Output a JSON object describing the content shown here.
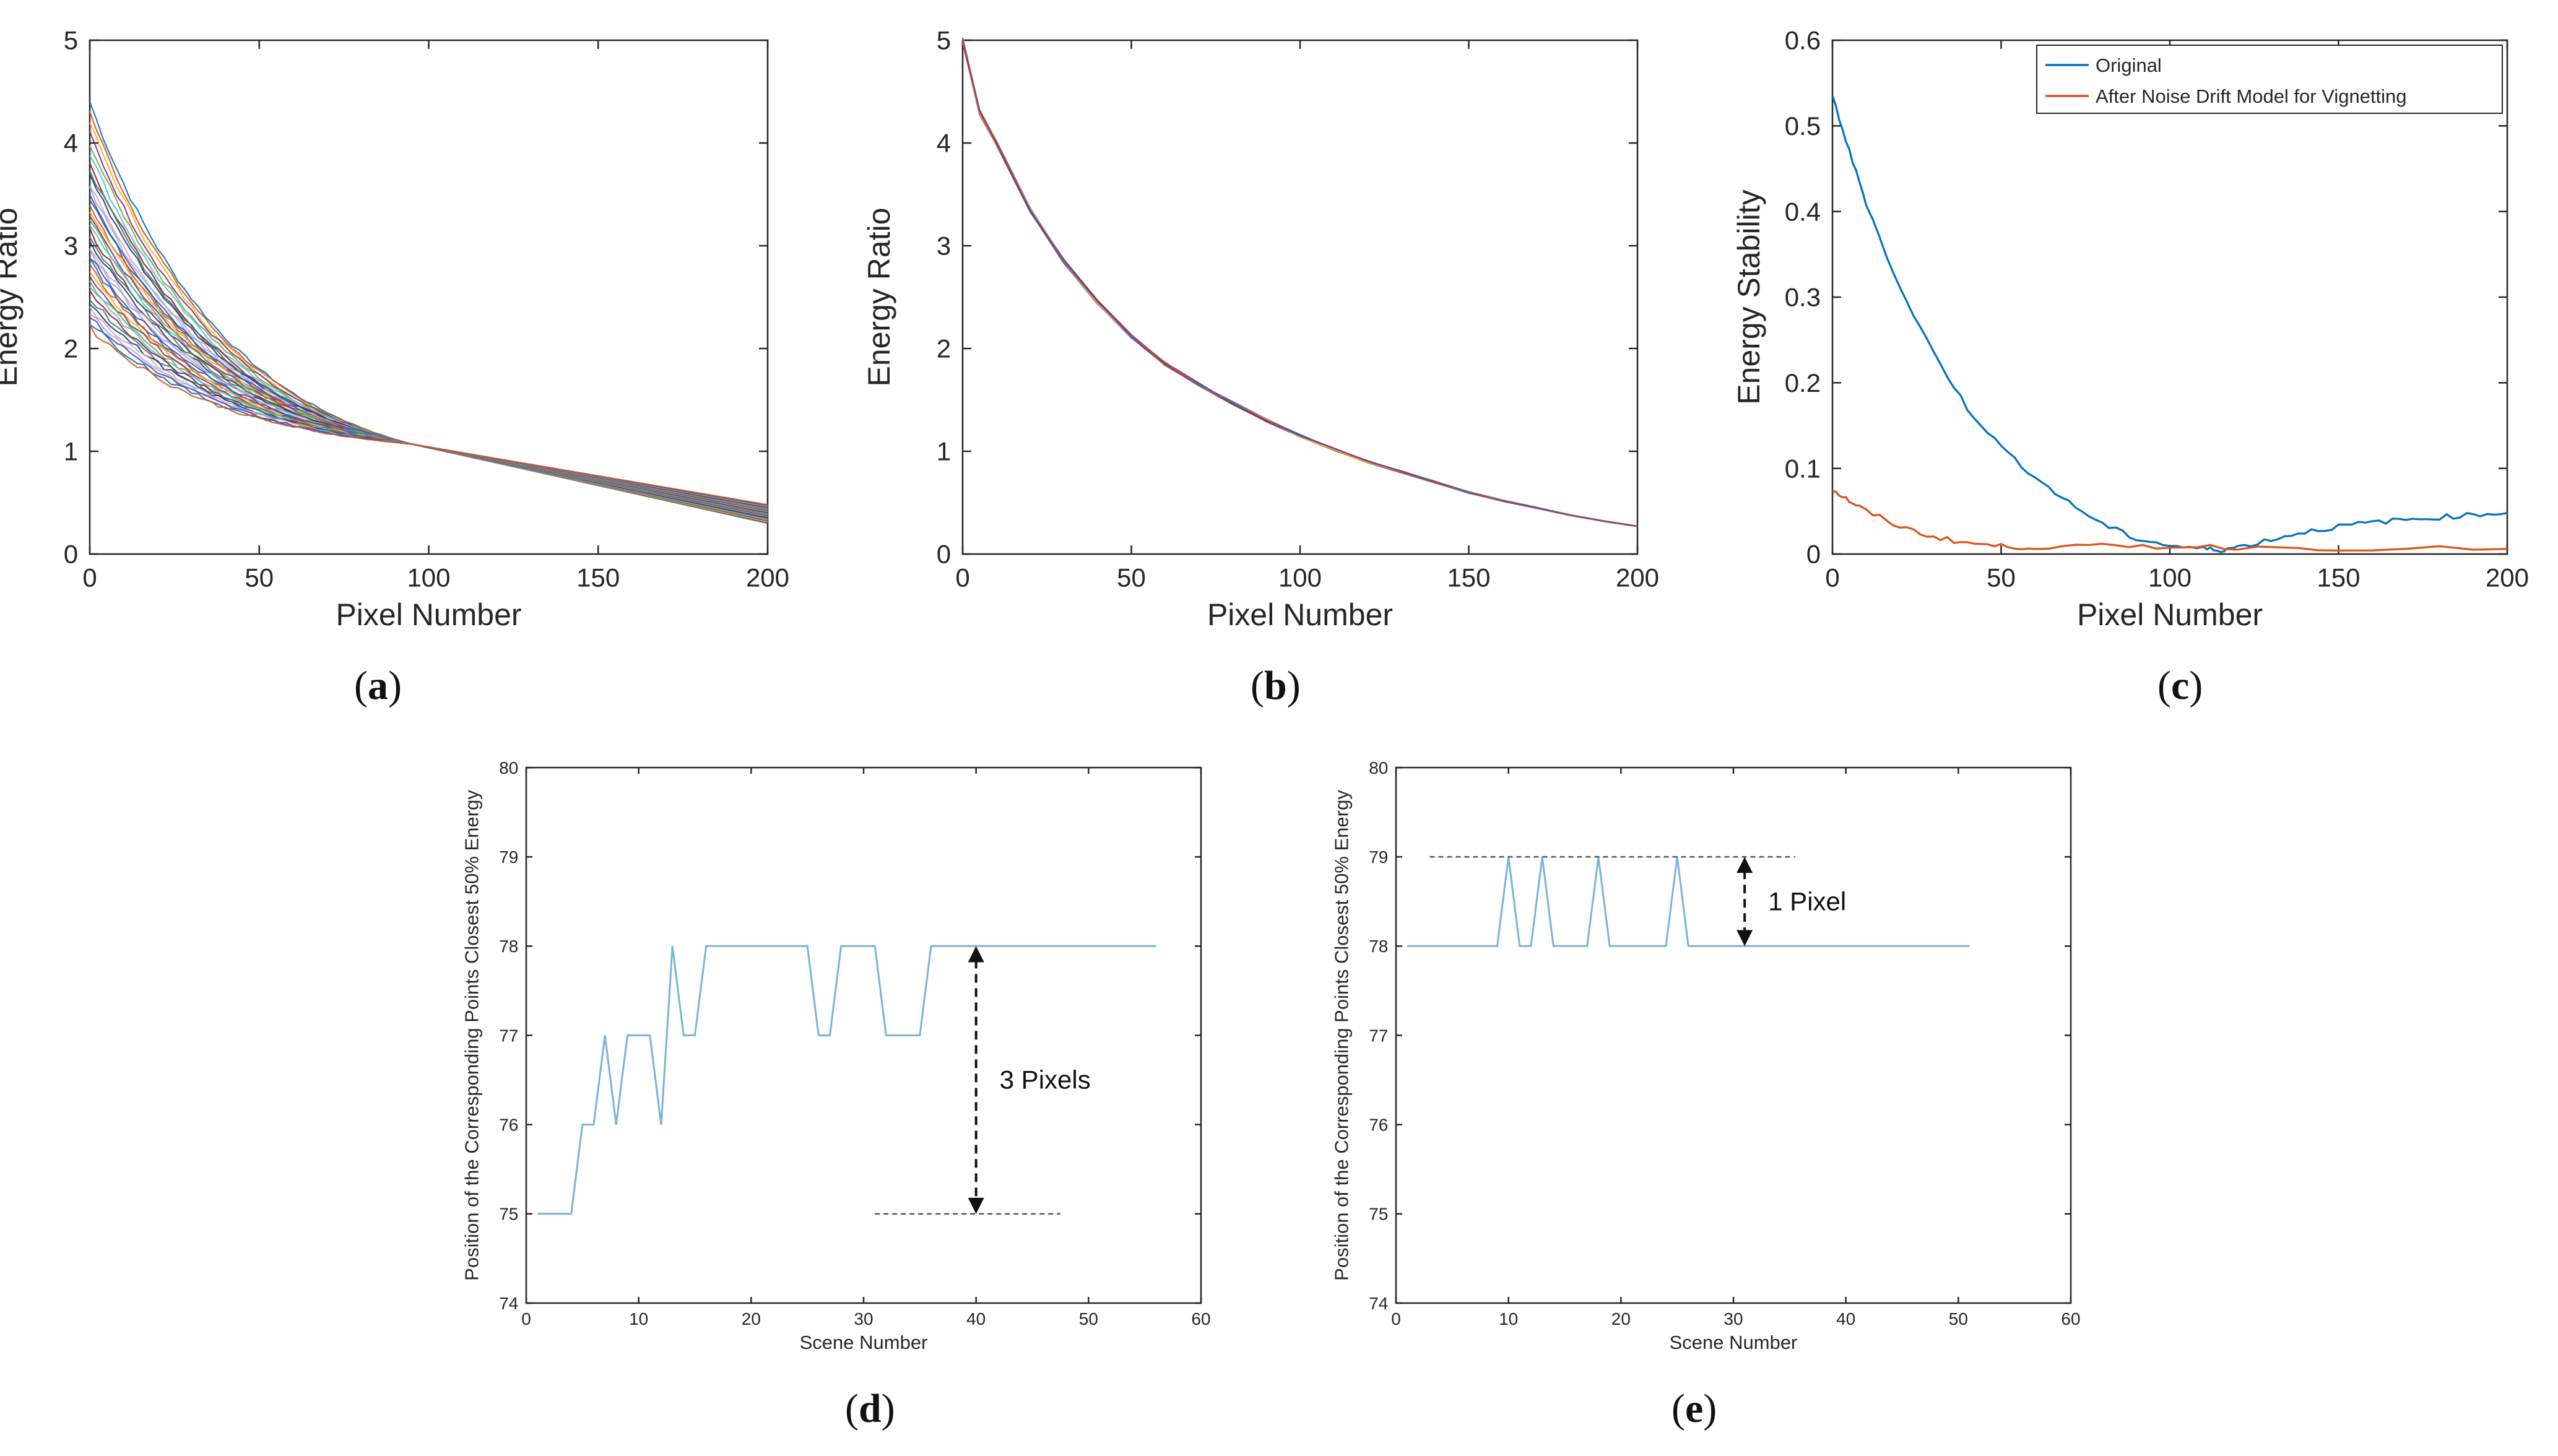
{
  "figure": {
    "panel_labels": [
      "a",
      "b",
      "c",
      "d",
      "e"
    ]
  },
  "colors": {
    "axis": "#262626",
    "series_a_palette": [
      "#0072BD",
      "#D95319",
      "#EDB120",
      "#7E2F8E",
      "#77AC30",
      "#4DBEEE",
      "#A2142F",
      "#2E8B57",
      "#1F3A93",
      "#E5A0A0",
      "#8DB3E2",
      "#6B3FA0"
    ],
    "original": "#0072BD",
    "after_model": "#D95319",
    "lower_line": "#79B3D9",
    "dashed": "#555555",
    "arrow": "#111111"
  },
  "chart_data": [
    {
      "id": "a",
      "type": "line",
      "description_series": "about 40 scene curves, each decays from a start value between 2.2 and 4.4 toward 1.07 at pixel 95, then to 0.30-0.48 at pixel 200",
      "xlabel": "Pixel Number",
      "ylabel": "Energy Ratio",
      "xlim": [
        0,
        200
      ],
      "ylim": [
        0,
        5
      ],
      "xticks": [
        0,
        50,
        100,
        150,
        200
      ],
      "yticks": [
        0,
        1,
        2,
        3,
        4,
        5
      ],
      "series_start_values": [
        4.4,
        4.3,
        4.2,
        4.1,
        4.0,
        3.9,
        3.8,
        3.75,
        3.7,
        3.6,
        3.55,
        3.5,
        3.45,
        3.4,
        3.35,
        3.3,
        3.25,
        3.2,
        3.15,
        3.1,
        3.05,
        3.0,
        2.95,
        2.9,
        2.85,
        2.8,
        2.75,
        2.7,
        2.65,
        2.6,
        2.55,
        2.5,
        2.45,
        2.4,
        2.35,
        2.3,
        2.25,
        2.2
      ],
      "converge_x": 95,
      "converge_y": 1.07,
      "end_y_range": [
        0.3,
        0.48
      ]
    },
    {
      "id": "b",
      "type": "line",
      "xlabel": "Pixel Number",
      "ylabel": "Energy Ratio",
      "xlim": [
        0,
        200
      ],
      "ylim": [
        0,
        5
      ],
      "xticks": [
        0,
        50,
        100,
        150,
        200
      ],
      "yticks": [
        0,
        1,
        2,
        3,
        4,
        5
      ],
      "x": [
        0,
        5,
        10,
        20,
        30,
        40,
        50,
        60,
        70,
        80,
        90,
        100,
        110,
        120,
        130,
        140,
        150,
        160,
        170,
        180,
        190,
        200
      ],
      "y": [
        5.0,
        4.3,
        4.0,
        3.35,
        2.85,
        2.45,
        2.12,
        1.85,
        1.65,
        1.47,
        1.3,
        1.15,
        1.02,
        0.9,
        0.8,
        0.7,
        0.6,
        0.52,
        0.45,
        0.38,
        0.32,
        0.27
      ],
      "series_count": 40
    },
    {
      "id": "c",
      "type": "line",
      "xlabel": "Pixel Number",
      "ylabel": "Energy Stability",
      "xlim": [
        0,
        200
      ],
      "ylim": [
        0,
        0.6
      ],
      "xticks": [
        0,
        50,
        100,
        150,
        200
      ],
      "yticks": [
        0,
        0.1,
        0.2,
        0.3,
        0.4,
        0.5,
        0.6
      ],
      "ytick_labels": [
        "0",
        "0.1",
        "0.2",
        "0.3",
        "0.4",
        "0.5",
        "0.6"
      ],
      "legend_position": "top-right",
      "series": [
        {
          "name": "Original",
          "x": [
            0,
            5,
            10,
            20,
            30,
            40,
            50,
            60,
            70,
            80,
            90,
            100,
            110,
            115,
            120,
            130,
            140,
            150,
            160,
            170,
            180,
            190,
            200
          ],
          "y": [
            0.535,
            0.47,
            0.41,
            0.31,
            0.235,
            0.17,
            0.125,
            0.09,
            0.06,
            0.035,
            0.018,
            0.01,
            0.006,
            0.005,
            0.008,
            0.017,
            0.026,
            0.032,
            0.037,
            0.04,
            0.043,
            0.046,
            0.048
          ]
        },
        {
          "name": "After Noise Drift Model for Vignetting",
          "x": [
            0,
            5,
            10,
            20,
            30,
            40,
            50,
            60,
            80,
            100,
            120,
            150,
            200
          ],
          "y": [
            0.075,
            0.062,
            0.05,
            0.032,
            0.02,
            0.013,
            0.009,
            0.008,
            0.009,
            0.009,
            0.008,
            0.007,
            0.006
          ]
        }
      ]
    },
    {
      "id": "d",
      "type": "line",
      "xlabel": "Scene Number",
      "ylabel": "Position of the Corresponding Points Closest 50% Energy",
      "xlim": [
        0,
        60
      ],
      "ylim": [
        74,
        80
      ],
      "xticks": [
        0,
        10,
        20,
        30,
        40,
        50,
        60
      ],
      "yticks": [
        74,
        75,
        76,
        77,
        78,
        79,
        80
      ],
      "x": [
        1,
        2,
        3,
        4,
        5,
        6,
        7,
        8,
        9,
        10,
        11,
        12,
        13,
        14,
        15,
        16,
        17,
        18,
        19,
        20,
        21,
        22,
        23,
        24,
        25,
        26,
        27,
        28,
        29,
        30,
        31,
        32,
        33,
        34,
        35,
        36,
        37,
        38,
        39,
        40,
        41,
        42,
        43,
        44,
        45,
        46,
        47,
        48,
        49,
        50,
        51,
        52,
        53,
        54,
        55,
        56
      ],
      "y": [
        75,
        75,
        75,
        75,
        76,
        76,
        77,
        76,
        77,
        77,
        77,
        76,
        78,
        77,
        77,
        78,
        78,
        78,
        78,
        78,
        78,
        78,
        78,
        78,
        78,
        77,
        77,
        78,
        78,
        78,
        78,
        77,
        77,
        77,
        77,
        78,
        78,
        78,
        78,
        78,
        78,
        78,
        78,
        78,
        78,
        78,
        78,
        78,
        78,
        78,
        78,
        78,
        78,
        78,
        78,
        78
      ],
      "annotation": {
        "text": "3 Pixels",
        "arrow_x": 40,
        "arrow_from": 78,
        "arrow_to": 75,
        "dashed_y": 75,
        "dashed_x_range": [
          31,
          47.5
        ]
      }
    },
    {
      "id": "e",
      "type": "line",
      "xlabel": "Scene Number",
      "ylabel": "Position of the Corresponding Points Closest 50% Energy",
      "xlim": [
        0,
        60
      ],
      "ylim": [
        74,
        80
      ],
      "xticks": [
        0,
        10,
        20,
        30,
        40,
        50,
        60
      ],
      "yticks": [
        74,
        75,
        76,
        77,
        78,
        79,
        80
      ],
      "x": [
        1,
        2,
        3,
        4,
        5,
        6,
        7,
        8,
        9,
        10,
        11,
        12,
        13,
        14,
        15,
        16,
        17,
        18,
        19,
        20,
        21,
        22,
        23,
        24,
        25,
        26,
        27,
        28,
        29,
        30,
        31,
        32,
        33,
        34,
        35,
        36,
        37,
        38,
        39,
        40,
        41,
        42,
        43,
        44,
        45,
        46,
        47,
        48,
        49,
        50,
        51
      ],
      "y": [
        78,
        78,
        78,
        78,
        78,
        78,
        78,
        78,
        78,
        79,
        78,
        78,
        79,
        78,
        78,
        78,
        78,
        79,
        78,
        78,
        78,
        78,
        78,
        78,
        79,
        78,
        78,
        78,
        78,
        78,
        78,
        78,
        78,
        78,
        78,
        78,
        78,
        78,
        78,
        78,
        78,
        78,
        78,
        78,
        78,
        78,
        78,
        78,
        78,
        78,
        78
      ],
      "annotation": {
        "text": "1 Pixel",
        "arrow_x": 31,
        "arrow_from": 79,
        "arrow_to": 78,
        "dashed_y": 79,
        "dashed_x_range": [
          3,
          35.5
        ]
      }
    }
  ]
}
